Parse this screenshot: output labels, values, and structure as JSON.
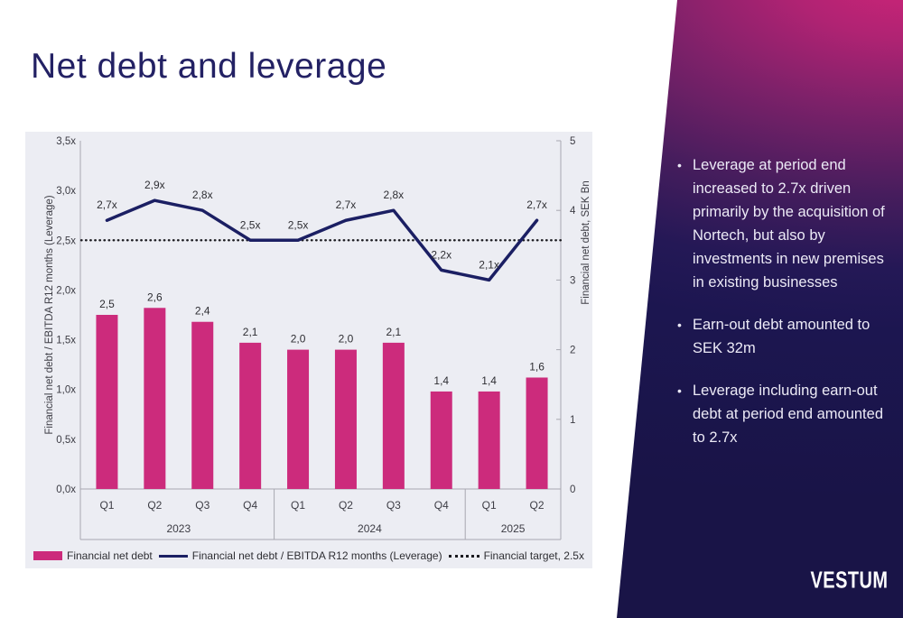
{
  "slide": {
    "title": "Net debt and leverage"
  },
  "brand": {
    "logo_text": "VESTUM"
  },
  "side_panel": {
    "bullets": [
      "Leverage at period end increased to 2.7x driven primarily by the acquisition of Nortech, but also by investments in new premises in existing businesses",
      "Earn-out debt amounted to SEK 32m",
      "Leverage including earn-out debt at period end amounted to 2.7x"
    ]
  },
  "colors": {
    "bar_pink": "#cc2b7c",
    "line_navy": "#1b1f63",
    "target_black": "#1a1a1f",
    "chart_bg": "#ecedf3",
    "panel_navy": "#1c1650",
    "panel_magenta": "#d02478",
    "title_navy": "#232164",
    "axis_gray": "#a8a8b0",
    "text_gray": "#3c3c44"
  },
  "chart_data": {
    "type": "bar",
    "subtype": "bar+line combo, dual axis",
    "categories": [
      "Q1",
      "Q2",
      "Q3",
      "Q4",
      "Q1",
      "Q2",
      "Q3",
      "Q4",
      "Q1",
      "Q2"
    ],
    "year_groups": [
      {
        "label": "2023",
        "span": 4
      },
      {
        "label": "2024",
        "span": 4
      },
      {
        "label": "2025",
        "span": 2
      }
    ],
    "series": [
      {
        "name": "Financial net debt",
        "type": "bar",
        "axis": "right",
        "color": "#cc2b7c",
        "values": [
          2.5,
          2.6,
          2.4,
          2.1,
          2.0,
          2.0,
          2.1,
          1.4,
          1.4,
          1.6
        ],
        "labels": [
          "2,5",
          "2,6",
          "2,4",
          "2,1",
          "2,0",
          "2,0",
          "2,1",
          "1,4",
          "1,4",
          "1,6"
        ]
      },
      {
        "name": "Financial net debt / EBITDA R12 months (Leverage)",
        "type": "line",
        "axis": "left",
        "color": "#1b1f63",
        "values": [
          2.7,
          2.9,
          2.8,
          2.5,
          2.5,
          2.7,
          2.8,
          2.2,
          2.1,
          2.7
        ],
        "labels": [
          "2,7x",
          "2,9x",
          "2,8x",
          "2,5x",
          "2,5x",
          "2,7x",
          "2,8x",
          "2,2x",
          "2,1x",
          "2,7x"
        ]
      },
      {
        "name": "Financial target, 2.5x",
        "type": "target-line",
        "axis": "left",
        "color": "#1a1a1f",
        "value": 2.5
      }
    ],
    "left_axis": {
      "label": "Financial net debt / EBITDA R12 months (Leverage)",
      "ticks": [
        "3,5x",
        "3,0x",
        "2,5x",
        "2,0x",
        "1,5x",
        "1,0x",
        "0,5x",
        "0,0x"
      ],
      "min": 0,
      "max": 3.5
    },
    "right_axis": {
      "label": "Financial net debt, SEK Bn",
      "ticks": [
        "5",
        "4",
        "3",
        "2",
        "1",
        "0"
      ],
      "min": 0,
      "max": 5
    },
    "legend_position": "bottom",
    "grid": false
  }
}
